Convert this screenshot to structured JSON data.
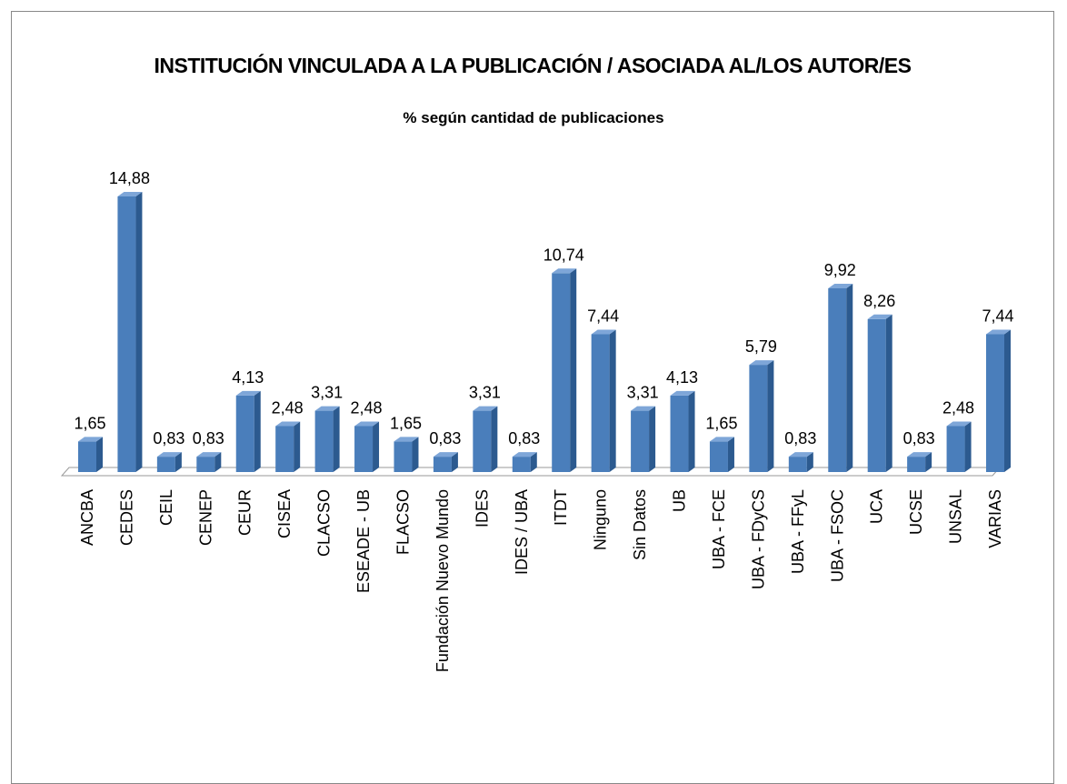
{
  "chart_data": {
    "type": "bar3d",
    "title": "INSTITUCIÓN VINCULADA A LA PUBLICACIÓN / ASOCIADA AL/LOS AUTOR/ES",
    "subtitle": "% según cantidad de publicaciones",
    "color": "#4a7ebb",
    "categories": [
      "ANCBA",
      "CEDES",
      "CEIL",
      "CENEP",
      "CEUR",
      "CISEA",
      "CLACSO",
      "ESEADE - UB",
      "FLACSO",
      "Fundación Nuevo Mundo",
      "IDES",
      "IDES / UBA",
      "ITDT",
      "Ninguno",
      "Sin Datos",
      "UB",
      "UBA - FCE",
      "UBA - FDyCS",
      "UBA - FFyL",
      "UBA - FSOC",
      "UCA",
      "UCSE",
      "UNSAL",
      "VARIAS"
    ],
    "values": [
      1.65,
      14.88,
      0.83,
      0.83,
      4.13,
      2.48,
      3.31,
      2.48,
      1.65,
      0.83,
      3.31,
      0.83,
      10.74,
      7.44,
      3.31,
      4.13,
      1.65,
      5.79,
      0.83,
      9.92,
      8.26,
      0.83,
      2.48,
      7.44
    ],
    "value_labels": [
      "1,65",
      "14,88",
      "0,83",
      "0,83",
      "4,13",
      "2,48",
      "3,31",
      "2,48",
      "1,65",
      "0,83",
      "3,31",
      "0,83",
      "10,74",
      "7,44",
      "3,31",
      "4,13",
      "1,65",
      "5,79",
      "0,83",
      "9,92",
      "8,26",
      "0,83",
      "2,48",
      "7,44"
    ]
  }
}
